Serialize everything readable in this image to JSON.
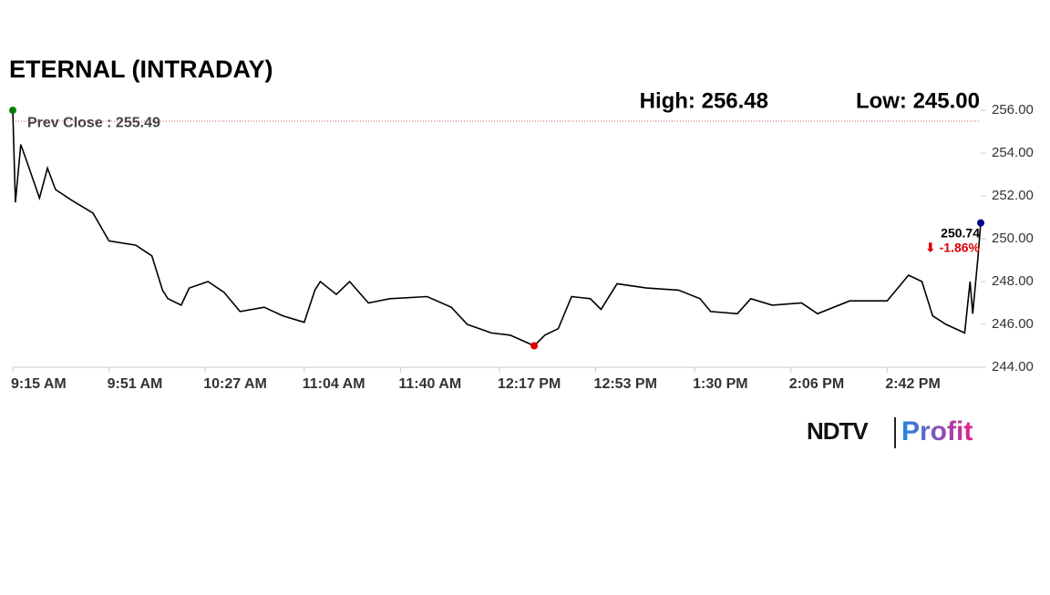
{
  "chart_data": {
    "type": "line",
    "title": "ETERNAL (INTRADAY)",
    "high_text": "High: 256.48",
    "low_text": "Low: 245.00",
    "prev_close_text": "Prev Close : 255.49",
    "prev_close": 255.49,
    "last_price_text": "250.74",
    "change_text": "⬇ -1.86%",
    "x": [
      "9:15 AM",
      "9:16 AM",
      "9:18 AM",
      "9:20 AM",
      "9:25 AM",
      "9:28 AM",
      "9:31 AM",
      "9:37 AM",
      "9:45 AM",
      "9:51 AM",
      "10:01 AM",
      "10:07 AM",
      "10:11 AM",
      "10:13 AM",
      "10:18 AM",
      "10:21 AM",
      "10:28 AM",
      "10:34 AM",
      "10:40 AM",
      "10:49 AM",
      "10:56 AM",
      "11:04 AM",
      "11:08 AM",
      "11:10 AM",
      "11:16 AM",
      "11:21 AM",
      "11:28 AM",
      "11:36 AM",
      "11:50 AM",
      "11:59 AM",
      "12:05 PM",
      "12:14 PM",
      "12:21 PM",
      "12:30 PM",
      "12:34 PM",
      "12:39 PM",
      "12:44 PM",
      "12:51 PM",
      "12:55 PM",
      "1:01 PM",
      "1:12 PM",
      "1:24 PM",
      "1:32 PM",
      "1:36 PM",
      "1:46 PM",
      "1:51 PM",
      "1:59 PM",
      "2:10 PM",
      "2:16 PM",
      "2:28 PM",
      "2:42 PM",
      "2:50 PM",
      "2:55 PM",
      "2:59 PM",
      "3:04 PM",
      "3:11 PM",
      "3:13 PM",
      "3:14 PM",
      "3:16 PM",
      "3:17 PM"
    ],
    "series": [
      {
        "name": "ETERNAL",
        "color": "#000000",
        "values": [
          256.0,
          251.7,
          254.4,
          253.7,
          251.9,
          253.3,
          252.3,
          251.8,
          251.2,
          249.9,
          249.7,
          249.2,
          247.6,
          247.2,
          246.9,
          247.7,
          248.0,
          247.5,
          246.6,
          246.8,
          246.4,
          246.1,
          247.6,
          248.0,
          247.4,
          248.0,
          247.0,
          247.2,
          247.3,
          246.8,
          246.0,
          245.6,
          245.5,
          245.0,
          245.5,
          245.8,
          247.3,
          247.2,
          246.7,
          247.9,
          247.7,
          247.6,
          247.2,
          246.6,
          246.5,
          247.2,
          246.9,
          247.0,
          246.5,
          247.1,
          247.1,
          248.3,
          248.0,
          246.4,
          246.0,
          245.6,
          248.0,
          246.5,
          249.2,
          250.74
        ]
      }
    ],
    "start_color": "#008000",
    "low_color": "#e00000",
    "end_color": "#00008b",
    "prev_close_color": "#d9534f",
    "change_color": "#e00000",
    "xlim": [
      "9:15 AM",
      "3:17 PM"
    ],
    "xticks": [
      "9:15 AM",
      "9:51 AM",
      "10:27 AM",
      "11:04 AM",
      "11:40 AM",
      "12:17 PM",
      "12:53 PM",
      "1:30 PM",
      "2:06 PM",
      "2:42 PM"
    ],
    "ylim": [
      244,
      256.3
    ],
    "yticks": [
      {
        "value": 244,
        "label": "244.00"
      },
      {
        "value": 246,
        "label": "246.00"
      },
      {
        "value": 248,
        "label": "248.00"
      },
      {
        "value": 250,
        "label": "250.00"
      },
      {
        "value": 252,
        "label": "252.00"
      },
      {
        "value": 254,
        "label": "254.00"
      },
      {
        "value": 256,
        "label": "256.00"
      }
    ]
  },
  "logo": {
    "left": "NDTV",
    "right": "Profit"
  }
}
